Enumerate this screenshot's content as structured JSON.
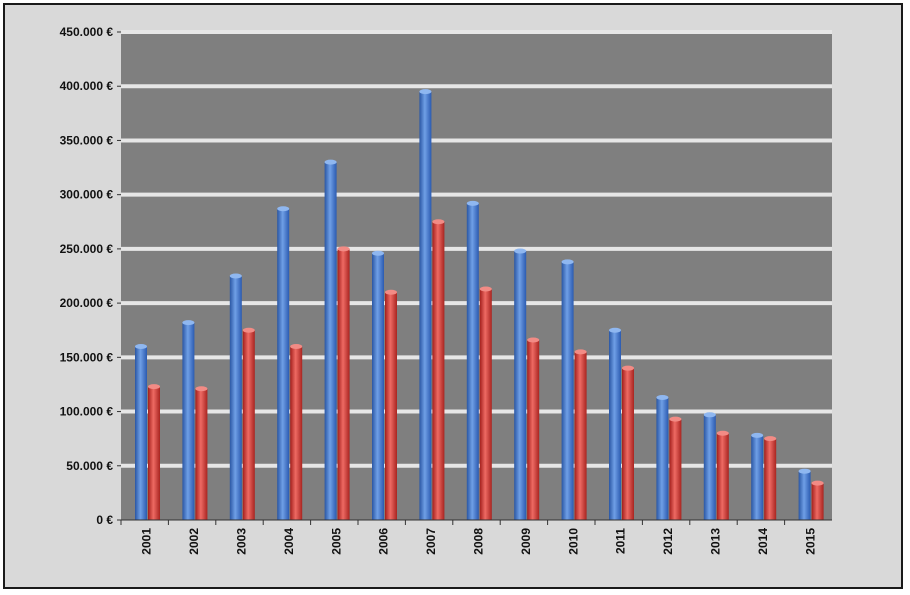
{
  "chart_data": {
    "type": "bar",
    "title": "",
    "xlabel": "",
    "ylabel": "",
    "categories": [
      "2001",
      "2002",
      "2003",
      "2004",
      "2005",
      "2006",
      "2007",
      "2008",
      "2009",
      "2010",
      "2011",
      "2012",
      "2013",
      "2014",
      "2015"
    ],
    "series": [
      {
        "values": [
          160000,
          182000,
          225000,
          287000,
          330000,
          246000,
          395000,
          292000,
          248000,
          238000,
          175000,
          113000,
          97000,
          78000,
          45000
        ]
      },
      {
        "values": [
          123000,
          121000,
          175000,
          160000,
          250000,
          210000,
          275000,
          213000,
          166000,
          155000,
          140000,
          93000,
          80000,
          75000,
          34000
        ]
      }
    ],
    "ylim": [
      0,
      450000
    ],
    "yticks": [
      {
        "value": 0,
        "label": "0 €"
      },
      {
        "value": 50000,
        "label": "50.000 €"
      },
      {
        "value": 100000,
        "label": "100.000 €"
      },
      {
        "value": 150000,
        "label": "150.000 €"
      },
      {
        "value": 200000,
        "label": "200.000 €"
      },
      {
        "value": 250000,
        "label": "250.000 €"
      },
      {
        "value": 300000,
        "label": "300.000 €"
      },
      {
        "value": 350000,
        "label": "350.000 €"
      },
      {
        "value": 400000,
        "label": "400.000 €"
      },
      {
        "value": 450000,
        "label": "450.000 €"
      }
    ],
    "grid": true,
    "legend": "none",
    "colors": {
      "series1": "#3b72c8",
      "series2": "#cc2f2b",
      "plot_background": "#7f7f7f",
      "gridline": "#e6e6e6"
    }
  }
}
